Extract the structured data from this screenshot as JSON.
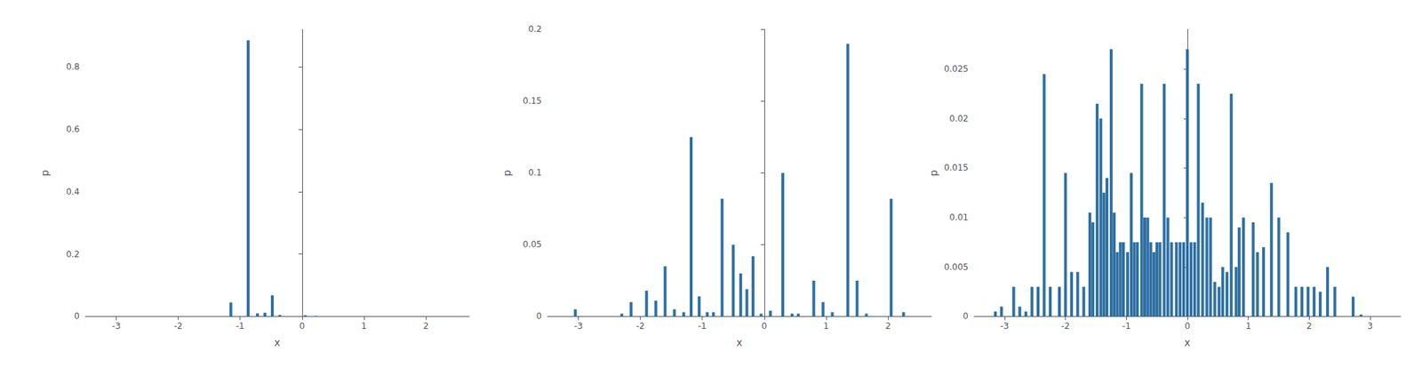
{
  "chart_data": [
    {
      "type": "bar",
      "xlabel": "x",
      "ylabel": "p",
      "color": "#2d6fa3",
      "grid": false,
      "xlim": [
        -3.5,
        2.7
      ],
      "ylim": [
        0,
        0.92
      ],
      "xticks": [
        -3,
        -2,
        -1,
        0,
        1,
        2
      ],
      "yticks": [
        0,
        0.2,
        0.4,
        0.6,
        0.8
      ],
      "x": [
        -1.15,
        -0.87,
        -0.72,
        -0.6,
        -0.48,
        -0.36,
        0.05,
        0.22,
        2.5
      ],
      "values": [
        0.045,
        0.885,
        0.01,
        0.012,
        0.068,
        0.005,
        0.004,
        0.002,
        0.001
      ]
    },
    {
      "type": "bar",
      "xlabel": "x",
      "ylabel": "p",
      "color": "#2d6fa3",
      "grid": false,
      "xlim": [
        -3.5,
        2.7
      ],
      "ylim": [
        0,
        0.2
      ],
      "xticks": [
        -3,
        -2,
        -1,
        0,
        1,
        2
      ],
      "yticks": [
        0,
        0.05,
        0.1,
        0.15,
        0.2
      ],
      "x": [
        -3.05,
        -2.3,
        -2.15,
        -1.9,
        -1.75,
        -1.6,
        -1.45,
        -1.3,
        -1.18,
        -1.05,
        -0.92,
        -0.82,
        -0.68,
        -0.5,
        -0.38,
        -0.28,
        -0.18,
        -0.05,
        0.1,
        0.3,
        0.45,
        0.55,
        0.8,
        0.95,
        1.1,
        1.35,
        1.5,
        1.65,
        2.05,
        2.25
      ],
      "values": [
        0.005,
        0.002,
        0.01,
        0.018,
        0.011,
        0.035,
        0.005,
        0.003,
        0.125,
        0.014,
        0.003,
        0.003,
        0.082,
        0.05,
        0.03,
        0.019,
        0.042,
        0.002,
        0.004,
        0.1,
        0.002,
        0.002,
        0.025,
        0.01,
        0.003,
        0.19,
        0.025,
        0.002,
        0.082,
        0.003
      ]
    },
    {
      "type": "bar",
      "xlabel": "x",
      "ylabel": "p",
      "color": "#2d6fa3",
      "grid": false,
      "xlim": [
        -3.5,
        3.5
      ],
      "ylim": [
        0,
        0.029
      ],
      "xticks": [
        -3,
        -2,
        -1,
        0,
        1,
        2,
        3
      ],
      "yticks": [
        0,
        0.005,
        0.01,
        0.015,
        0.02,
        0.025
      ],
      "x": [
        -3.15,
        -3.05,
        -2.85,
        -2.75,
        -2.65,
        -2.55,
        -2.45,
        -2.35,
        -2.25,
        -2.1,
        -2.0,
        -1.9,
        -1.8,
        -1.7,
        -1.6,
        -1.55,
        -1.48,
        -1.42,
        -1.37,
        -1.32,
        -1.25,
        -1.2,
        -1.15,
        -1.1,
        -1.05,
        -0.98,
        -0.92,
        -0.87,
        -0.82,
        -0.75,
        -0.7,
        -0.65,
        -0.6,
        -0.55,
        -0.5,
        -0.45,
        -0.38,
        -0.32,
        -0.26,
        -0.18,
        -0.12,
        -0.06,
        0.0,
        0.06,
        0.12,
        0.18,
        0.25,
        0.32,
        0.38,
        0.45,
        0.52,
        0.58,
        0.65,
        0.72,
        0.8,
        0.85,
        0.92,
        1.08,
        1.15,
        1.25,
        1.38,
        1.5,
        1.65,
        1.78,
        1.88,
        1.98,
        2.08,
        2.18,
        2.3,
        2.42,
        2.72,
        2.85
      ],
      "values": [
        0.0005,
        0.001,
        0.003,
        0.001,
        0.0005,
        0.003,
        0.003,
        0.0245,
        0.003,
        0.003,
        0.0145,
        0.0045,
        0.0045,
        0.003,
        0.0105,
        0.0095,
        0.0215,
        0.02,
        0.0125,
        0.014,
        0.027,
        0.0105,
        0.0065,
        0.0075,
        0.0075,
        0.0065,
        0.0145,
        0.0075,
        0.0075,
        0.0235,
        0.01,
        0.01,
        0.0075,
        0.0065,
        0.0075,
        0.0075,
        0.0235,
        0.01,
        0.0075,
        0.0075,
        0.0075,
        0.0075,
        0.027,
        0.0075,
        0.0075,
        0.0235,
        0.0115,
        0.01,
        0.01,
        0.0035,
        0.003,
        0.005,
        0.0045,
        0.0225,
        0.005,
        0.009,
        0.01,
        0.0095,
        0.0065,
        0.007,
        0.0135,
        0.01,
        0.0085,
        0.003,
        0.003,
        0.003,
        0.003,
        0.0025,
        0.005,
        0.003,
        0.002,
        0.0002
      ]
    }
  ]
}
